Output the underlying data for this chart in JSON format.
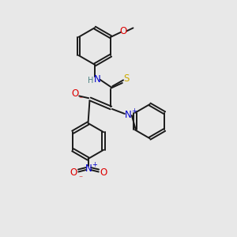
{
  "bg_color": "#e8e8e8",
  "bond_color": "#1a1a1a",
  "N_color": "#0000cc",
  "O_color": "#dd0000",
  "S_color": "#ccaa00",
  "H_color": "#4a8080",
  "fig_size": [
    3.0,
    3.0
  ],
  "dpi": 100,
  "xlim": [
    0,
    10
  ],
  "ylim": [
    0,
    10
  ]
}
